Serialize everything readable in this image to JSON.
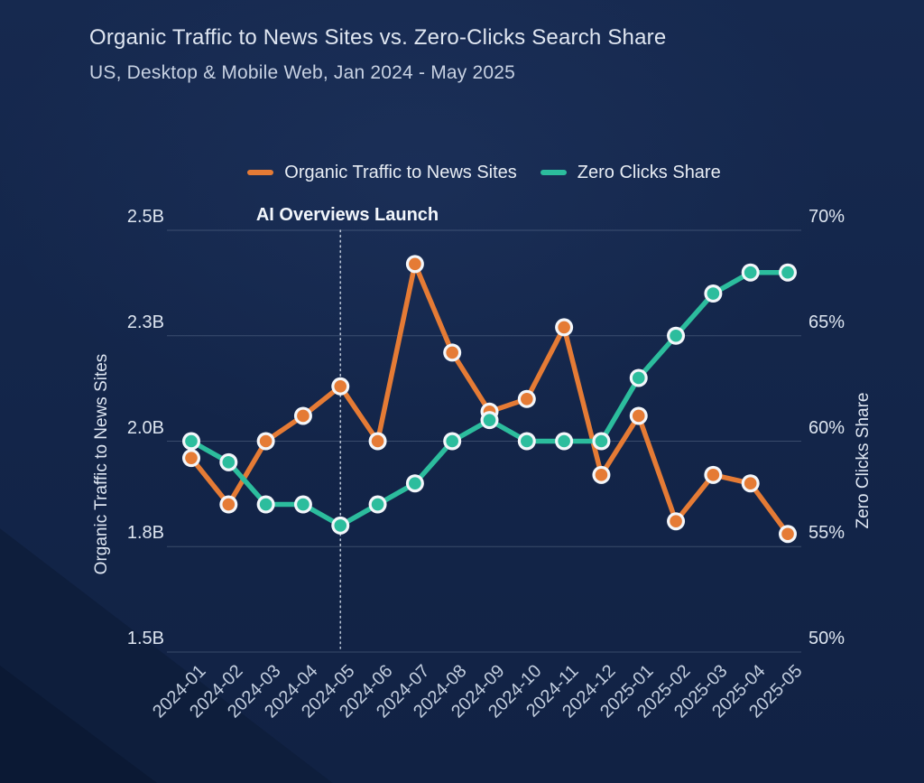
{
  "page": {
    "title": "Organic Traffic to News Sites vs. Zero-Clicks Search Share",
    "subtitle": "US, Desktop & Mobile Web, Jan 2024 - May 2025"
  },
  "annotation": {
    "label": "AI Overviews Launch",
    "category": "2024-05"
  },
  "colors": {
    "background": "#132549",
    "traffic_series": "#E57B35",
    "zero_clicks_series": "#2CBD9D",
    "marker_ring": "#F3F6FA"
  },
  "chart_data": {
    "type": "line",
    "title": "Organic Traffic to News Sites vs. Zero-Clicks Search Share",
    "subtitle": "US, Desktop & Mobile Web, Jan 2024 - May 2025",
    "grid": true,
    "legend_position": "top",
    "categories": [
      "2024-01",
      "2024-02",
      "2024-03",
      "2024-04",
      "2024-05",
      "2024-06",
      "2024-07",
      "2024-08",
      "2024-09",
      "2024-10",
      "2024-11",
      "2024-12",
      "2025-01",
      "2025-02",
      "2025-03",
      "2025-04",
      "2025-05"
    ],
    "series": [
      {
        "name": "Organic Traffic to News Sites",
        "axis": "left",
        "unit": "billion visits",
        "color": "#E57B35",
        "values": [
          1.96,
          1.85,
          2.0,
          2.06,
          2.13,
          2.0,
          2.42,
          2.21,
          2.07,
          2.1,
          2.27,
          1.92,
          2.06,
          1.81,
          1.92,
          1.9,
          1.78
        ]
      },
      {
        "name": "Zero Clicks Share",
        "axis": "right",
        "unit": "%",
        "color": "#2CBD9D",
        "values": [
          60,
          59,
          57,
          57,
          56,
          57,
          58,
          60,
          61,
          60,
          60,
          60,
          63,
          65,
          67,
          68,
          68
        ]
      }
    ],
    "left_axis": {
      "title": "Organic Traffic to News Sites",
      "range": [
        1.5,
        2.5
      ],
      "tick_values": [
        2.5,
        2.25,
        2.0,
        1.75,
        1.5
      ],
      "tick_labels": [
        "2.5B",
        "2.3B",
        "2.0B",
        "1.8B",
        "1.5B"
      ]
    },
    "right_axis": {
      "title": "Zero Clicks Share",
      "range": [
        50,
        70
      ],
      "tick_values": [
        70,
        65,
        60,
        55,
        50
      ],
      "tick_labels": [
        "70%",
        "65%",
        "60%",
        "55%",
        "50%"
      ]
    },
    "annotation": {
      "label": "AI Overviews Launch",
      "category": "2024-05"
    }
  }
}
